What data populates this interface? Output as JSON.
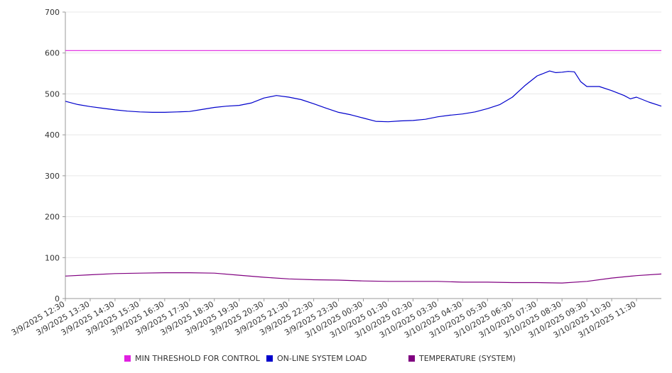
{
  "chart_data": {
    "type": "line",
    "title": "",
    "xlabel": "",
    "ylabel": "",
    "ylim": [
      0,
      700
    ],
    "yticks": [
      "0",
      "100",
      "200",
      "300",
      "400",
      "500",
      "600",
      "700"
    ],
    "xlim": [
      "2025-03-09T12:30",
      "2025-03-10T12:30"
    ],
    "xtick_labels": [
      "3/9/2025 12:30",
      "3/9/2025 13:30",
      "3/9/2025 14:30",
      "3/9/2025 15:30",
      "3/9/2025 16:30",
      "3/9/2025 17:30",
      "3/9/2025 18:30",
      "3/9/2025 19:30",
      "3/9/2025 20:30",
      "3/9/2025 21:30",
      "3/9/2025 22:30",
      "3/9/2025 23:30",
      "3/10/2025 00:30",
      "3/10/2025 01:30",
      "3/10/2025 02:30",
      "3/10/2025 03:30",
      "3/10/2025 04:30",
      "3/10/2025 05:30",
      "3/10/2025 06:30",
      "3/10/2025 07:30",
      "3/10/2025 08:30",
      "3/10/2025 09:30",
      "3/10/2025 10:30",
      "3/10/2025 11:30"
    ],
    "grid": true,
    "legend_position": "bottom",
    "series": [
      {
        "name": "MIN THRESHOLD FOR CONTROL",
        "color": "#e020e0",
        "x": [
          "2025-03-09T12:30",
          "2025-03-10T12:30"
        ],
        "y": [
          606,
          606
        ]
      },
      {
        "name": "ON-LINE SYSTEM LOAD",
        "color": "#0000cc",
        "x": [
          "2025-03-09T12:30",
          "2025-03-09T13:00",
          "2025-03-09T13:30",
          "2025-03-09T14:00",
          "2025-03-09T14:30",
          "2025-03-09T15:00",
          "2025-03-09T15:30",
          "2025-03-09T16:00",
          "2025-03-09T16:30",
          "2025-03-09T17:00",
          "2025-03-09T17:30",
          "2025-03-09T18:00",
          "2025-03-09T18:30",
          "2025-03-09T19:00",
          "2025-03-09T19:30",
          "2025-03-09T20:00",
          "2025-03-09T20:30",
          "2025-03-09T21:00",
          "2025-03-09T21:30",
          "2025-03-09T22:00",
          "2025-03-09T22:30",
          "2025-03-09T23:00",
          "2025-03-09T23:30",
          "2025-03-10T00:00",
          "2025-03-10T00:30",
          "2025-03-10T01:00",
          "2025-03-10T01:30",
          "2025-03-10T02:00",
          "2025-03-10T02:30",
          "2025-03-10T03:00",
          "2025-03-10T03:30",
          "2025-03-10T04:00",
          "2025-03-10T04:30",
          "2025-03-10T05:00",
          "2025-03-10T05:30",
          "2025-03-10T06:00",
          "2025-03-10T06:30",
          "2025-03-10T07:00",
          "2025-03-10T07:30",
          "2025-03-10T08:00",
          "2025-03-10T08:15",
          "2025-03-10T08:30",
          "2025-03-10T08:45",
          "2025-03-10T09:00",
          "2025-03-10T09:15",
          "2025-03-10T09:30",
          "2025-03-10T10:00",
          "2025-03-10T10:30",
          "2025-03-10T11:00",
          "2025-03-10T11:15",
          "2025-03-10T11:30",
          "2025-03-10T12:00",
          "2025-03-10T12:30"
        ],
        "y": [
          482,
          474,
          469,
          465,
          461,
          458,
          456,
          455,
          455,
          456,
          457,
          462,
          467,
          470,
          472,
          478,
          490,
          496,
          492,
          486,
          476,
          465,
          455,
          449,
          441,
          433,
          432,
          434,
          435,
          438,
          444,
          448,
          451,
          456,
          464,
          474,
          492,
          520,
          544,
          556,
          552,
          553,
          555,
          554,
          530,
          518,
          518,
          508,
          496,
          488,
          492,
          480,
          470
        ]
      },
      {
        "name": "TEMPERATURE (SYSTEM)",
        "color": "#800080",
        "x": [
          "2025-03-09T12:30",
          "2025-03-09T13:30",
          "2025-03-09T14:30",
          "2025-03-09T15:30",
          "2025-03-09T16:30",
          "2025-03-09T17:30",
          "2025-03-09T18:30",
          "2025-03-09T19:30",
          "2025-03-09T20:30",
          "2025-03-09T21:30",
          "2025-03-09T22:30",
          "2025-03-09T23:30",
          "2025-03-10T00:30",
          "2025-03-10T01:30",
          "2025-03-10T02:30",
          "2025-03-10T03:30",
          "2025-03-10T04:30",
          "2025-03-10T05:30",
          "2025-03-10T06:30",
          "2025-03-10T07:30",
          "2025-03-10T08:30",
          "2025-03-10T09:30",
          "2025-03-10T10:30",
          "2025-03-10T11:30",
          "2025-03-10T12:30"
        ],
        "y": [
          55,
          58,
          61,
          62,
          63,
          63,
          62,
          57,
          52,
          48,
          46,
          45,
          43,
          42,
          42,
          42,
          40,
          40,
          39,
          39,
          38,
          42,
          50,
          56,
          60
        ]
      }
    ]
  }
}
